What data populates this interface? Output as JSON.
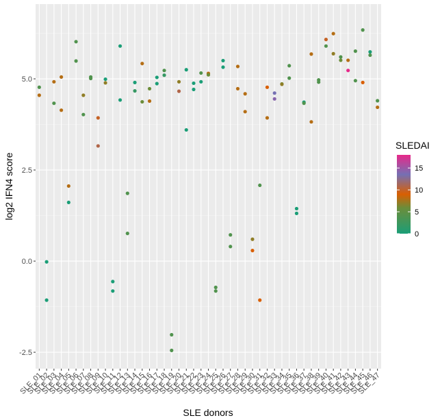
{
  "chart_data": {
    "type": "scatter",
    "title": "",
    "xlabel": "SLE donors",
    "ylabel": "log2 IFN4 score",
    "ylim": [
      -2.95,
      7.05
    ],
    "y_ticks": [
      -2.5,
      0.0,
      2.5,
      5.0
    ],
    "y_tick_labels": [
      "-2.5",
      "0.0",
      "2.5",
      "5.0"
    ],
    "grid": true,
    "background": "#ebebeb",
    "legend": {
      "title": "SLEDAI",
      "position": "right",
      "type": "colorbar",
      "range": [
        0,
        18
      ],
      "ticks": [
        0,
        5,
        10,
        15
      ],
      "tick_labels": [
        "0",
        "5",
        "10",
        "15"
      ],
      "colors": [
        "#1b9e77",
        "#d95f02",
        "#7570b3",
        "#e7298a"
      ]
    },
    "categories": [
      "SLE_01",
      "SLE_02",
      "SLE_03",
      "SLE_04",
      "SLE_05",
      "SLE_06",
      "SLE_07",
      "SLE_08",
      "SLE_09",
      "SLE_10",
      "SLE_11",
      "SLE_12",
      "SLE_13",
      "SLE_14",
      "SLE_15",
      "SLE_16",
      "SLE_17",
      "SLE_18",
      "SLE_19",
      "SLE_20",
      "SLE_21",
      "SLE_22",
      "SLE_23",
      "SLE_24",
      "SLE_25",
      "SLE_26",
      "SLE_27",
      "SLE_28",
      "SLE_29",
      "SLE_30",
      "SLE_31",
      "SLE_32",
      "SLE_33",
      "SLE_34",
      "SLE_35",
      "SLE_36",
      "SLE_37",
      "SLE_38",
      "SLE_39",
      "SLE_40",
      "SLE_41",
      "SLE_42",
      "SLE_43",
      "SLE_44",
      "SLE_45",
      "SLE_46",
      "SLE_47"
    ],
    "points": [
      {
        "x": "SLE_01",
        "y": 4.55,
        "sledai": 5
      },
      {
        "x": "SLE_01",
        "y": 4.77,
        "sledai": 2
      },
      {
        "x": "SLE_02",
        "y": -0.02,
        "sledai": 0
      },
      {
        "x": "SLE_02",
        "y": -1.07,
        "sledai": 0
      },
      {
        "x": "SLE_03",
        "y": 4.92,
        "sledai": 5
      },
      {
        "x": "SLE_03",
        "y": 4.33,
        "sledai": 2
      },
      {
        "x": "SLE_04",
        "y": 5.05,
        "sledai": 5
      },
      {
        "x": "SLE_04",
        "y": 4.14,
        "sledai": 5
      },
      {
        "x": "SLE_05",
        "y": 2.06,
        "sledai": 5
      },
      {
        "x": "SLE_05",
        "y": 1.61,
        "sledai": 0
      },
      {
        "x": "SLE_06",
        "y": 6.02,
        "sledai": 2
      },
      {
        "x": "SLE_06",
        "y": 5.49,
        "sledai": 2
      },
      {
        "x": "SLE_07",
        "y": 4.55,
        "sledai": 4
      },
      {
        "x": "SLE_07",
        "y": 4.02,
        "sledai": 2
      },
      {
        "x": "SLE_08",
        "y": 5.05,
        "sledai": 2
      },
      {
        "x": "SLE_08",
        "y": 5.01,
        "sledai": 2
      },
      {
        "x": "SLE_09",
        "y": 3.93,
        "sledai": 7
      },
      {
        "x": "SLE_09",
        "y": 3.16,
        "sledai": 8
      },
      {
        "x": "SLE_10",
        "y": 4.99,
        "sledai": 0
      },
      {
        "x": "SLE_10",
        "y": 4.89,
        "sledai": 4
      },
      {
        "x": "SLE_11",
        "y": -0.56,
        "sledai": 0
      },
      {
        "x": "SLE_11",
        "y": -0.82,
        "sledai": 0
      },
      {
        "x": "SLE_12",
        "y": 5.9,
        "sledai": 0
      },
      {
        "x": "SLE_12",
        "y": 4.42,
        "sledai": 0
      },
      {
        "x": "SLE_13",
        "y": 1.86,
        "sledai": 2
      },
      {
        "x": "SLE_13",
        "y": 0.76,
        "sledai": 2
      },
      {
        "x": "SLE_14",
        "y": 4.9,
        "sledai": 0
      },
      {
        "x": "SLE_14",
        "y": 4.67,
        "sledai": 1
      },
      {
        "x": "SLE_15",
        "y": 5.42,
        "sledai": 5
      },
      {
        "x": "SLE_15",
        "y": 4.37,
        "sledai": 3
      },
      {
        "x": "SLE_16",
        "y": 4.73,
        "sledai": 3
      },
      {
        "x": "SLE_16",
        "y": 4.39,
        "sledai": 5
      },
      {
        "x": "SLE_17",
        "y": 5.04,
        "sledai": 0
      },
      {
        "x": "SLE_17",
        "y": 4.87,
        "sledai": 0
      },
      {
        "x": "SLE_18",
        "y": 5.23,
        "sledai": 2
      },
      {
        "x": "SLE_18",
        "y": 5.1,
        "sledai": 1
      },
      {
        "x": "SLE_19",
        "y": -2.02,
        "sledai": 2
      },
      {
        "x": "SLE_19",
        "y": -2.45,
        "sledai": 2
      },
      {
        "x": "SLE_20",
        "y": 4.92,
        "sledai": 4
      },
      {
        "x": "SLE_20",
        "y": 4.66,
        "sledai": 8
      },
      {
        "x": "SLE_21",
        "y": 5.25,
        "sledai": 0
      },
      {
        "x": "SLE_21",
        "y": 3.6,
        "sledai": 0
      },
      {
        "x": "SLE_22",
        "y": 4.88,
        "sledai": 0
      },
      {
        "x": "SLE_22",
        "y": 4.71,
        "sledai": 0
      },
      {
        "x": "SLE_23",
        "y": 5.16,
        "sledai": 2
      },
      {
        "x": "SLE_23",
        "y": 4.92,
        "sledai": 0
      },
      {
        "x": "SLE_24",
        "y": 5.15,
        "sledai": 5
      },
      {
        "x": "SLE_24",
        "y": 5.11,
        "sledai": 3
      },
      {
        "x": "SLE_25",
        "y": -0.72,
        "sledai": 2
      },
      {
        "x": "SLE_25",
        "y": -0.82,
        "sledai": 2
      },
      {
        "x": "SLE_26",
        "y": 5.5,
        "sledai": 0
      },
      {
        "x": "SLE_26",
        "y": 5.32,
        "sledai": 0
      },
      {
        "x": "SLE_27",
        "y": 0.72,
        "sledai": 2
      },
      {
        "x": "SLE_27",
        "y": 0.4,
        "sledai": 2
      },
      {
        "x": "SLE_28",
        "y": 5.34,
        "sledai": 5
      },
      {
        "x": "SLE_28",
        "y": 4.73,
        "sledai": 5
      },
      {
        "x": "SLE_29",
        "y": 4.59,
        "sledai": 5
      },
      {
        "x": "SLE_29",
        "y": 4.1,
        "sledai": 5
      },
      {
        "x": "SLE_30",
        "y": 0.6,
        "sledai": 4
      },
      {
        "x": "SLE_30",
        "y": 0.29,
        "sledai": 6
      },
      {
        "x": "SLE_31",
        "y": 2.08,
        "sledai": 2
      },
      {
        "x": "SLE_31",
        "y": -1.07,
        "sledai": 6
      },
      {
        "x": "SLE_32",
        "y": 4.77,
        "sledai": 6
      },
      {
        "x": "SLE_32",
        "y": 3.93,
        "sledai": 5
      },
      {
        "x": "SLE_33",
        "y": 4.61,
        "sledai": 11
      },
      {
        "x": "SLE_33",
        "y": 4.45,
        "sledai": 12
      },
      {
        "x": "SLE_34",
        "y": 4.86,
        "sledai": 3
      },
      {
        "x": "SLE_34",
        "y": 4.85,
        "sledai": 4
      },
      {
        "x": "SLE_35",
        "y": 5.36,
        "sledai": 2
      },
      {
        "x": "SLE_35",
        "y": 5.02,
        "sledai": 2
      },
      {
        "x": "SLE_36",
        "y": 1.44,
        "sledai": 0
      },
      {
        "x": "SLE_36",
        "y": 1.31,
        "sledai": 0
      },
      {
        "x": "SLE_37",
        "y": 4.36,
        "sledai": 0
      },
      {
        "x": "SLE_37",
        "y": 4.33,
        "sledai": 2
      },
      {
        "x": "SLE_38",
        "y": 5.68,
        "sledai": 5
      },
      {
        "x": "SLE_38",
        "y": 3.82,
        "sledai": 5
      },
      {
        "x": "SLE_39",
        "y": 4.97,
        "sledai": 2
      },
      {
        "x": "SLE_39",
        "y": 4.91,
        "sledai": 2
      },
      {
        "x": "SLE_40",
        "y": 6.08,
        "sledai": 7
      },
      {
        "x": "SLE_40",
        "y": 5.9,
        "sledai": 2
      },
      {
        "x": "SLE_41",
        "y": 6.24,
        "sledai": 5
      },
      {
        "x": "SLE_41",
        "y": 5.69,
        "sledai": 4
      },
      {
        "x": "SLE_42",
        "y": 5.6,
        "sledai": 2
      },
      {
        "x": "SLE_42",
        "y": 5.51,
        "sledai": 3
      },
      {
        "x": "SLE_43",
        "y": 5.51,
        "sledai": 5
      },
      {
        "x": "SLE_43",
        "y": 5.23,
        "sledai": 17
      },
      {
        "x": "SLE_44",
        "y": 5.76,
        "sledai": 2
      },
      {
        "x": "SLE_44",
        "y": 4.95,
        "sledai": 2
      },
      {
        "x": "SLE_45",
        "y": 6.34,
        "sledai": 2
      },
      {
        "x": "SLE_45",
        "y": 4.9,
        "sledai": 6
      },
      {
        "x": "SLE_46",
        "y": 5.74,
        "sledai": 0
      },
      {
        "x": "SLE_46",
        "y": 5.65,
        "sledai": 2
      },
      {
        "x": "SLE_47",
        "y": 4.4,
        "sledai": 2
      },
      {
        "x": "SLE_47",
        "y": 4.22,
        "sledai": 5
      }
    ]
  }
}
